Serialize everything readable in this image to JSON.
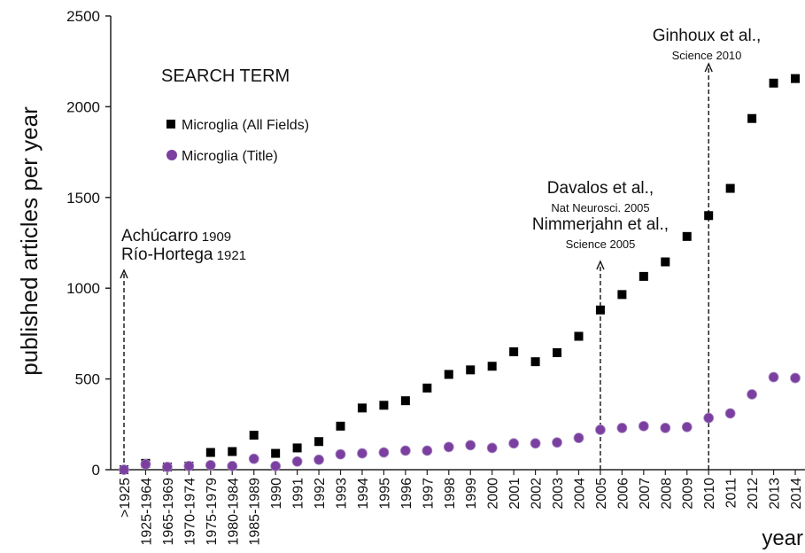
{
  "chart_data": {
    "type": "scatter",
    "ylabel": "published articles per year",
    "xlabel": "year",
    "legend_title": "SEARCH TERM",
    "categories": [
      ">1925",
      "1925-1964",
      "1965-1969",
      "1970-1974",
      "1975-1979",
      "1980-1984",
      "1985-1989",
      "1990",
      "1991",
      "1992",
      "1993",
      "1994",
      "1995",
      "1996",
      "1997",
      "1998",
      "1999",
      "2000",
      "2001",
      "2002",
      "2003",
      "2004",
      "2005",
      "2006",
      "2007",
      "2008",
      "2009",
      "2010",
      "2011",
      "2012",
      "2013",
      "2014"
    ],
    "series": [
      {
        "name": "Microglia (All Fields)",
        "color": "#000000",
        "marker": "square",
        "values": [
          0,
          35,
          15,
          20,
          95,
          100,
          190,
          90,
          120,
          155,
          240,
          340,
          355,
          380,
          450,
          525,
          550,
          570,
          650,
          595,
          645,
          735,
          880,
          965,
          1065,
          1145,
          1285,
          1400,
          1550,
          1935,
          2130,
          2155
        ]
      },
      {
        "name": "Microglia (Title)",
        "color": "#7b3fa0",
        "marker": "circle",
        "values": [
          0,
          30,
          15,
          20,
          25,
          20,
          60,
          20,
          45,
          55,
          85,
          90,
          95,
          105,
          105,
          125,
          135,
          120,
          145,
          145,
          150,
          175,
          220,
          230,
          240,
          230,
          235,
          285,
          310,
          415,
          510,
          505
        ]
      }
    ],
    "ylim": [
      0,
      2500
    ],
    "yticks": [
      0,
      500,
      1000,
      1500,
      2000,
      2500
    ],
    "annotations": [
      {
        "at": ">1925",
        "lines": [
          {
            "main": "Achúcarro",
            "note": "1909"
          },
          {
            "main": "Río-Hortega",
            "note": "1921"
          }
        ]
      },
      {
        "at": "2005",
        "lines": [
          {
            "main": "Davalos et al.,"
          },
          {
            "note": "Nat Neurosci. 2005"
          },
          {
            "main": "Nimmerjahn et al.,"
          },
          {
            "note": "Science 2005"
          }
        ]
      },
      {
        "at": "2010",
        "lines": [
          {
            "main": "Ginhoux et al.,"
          },
          {
            "note": "Science 2010"
          }
        ]
      }
    ]
  }
}
